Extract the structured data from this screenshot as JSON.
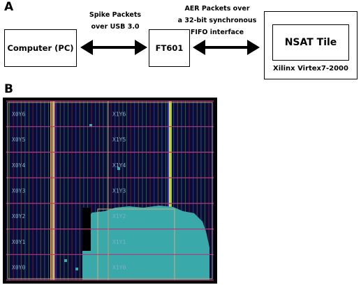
{
  "panel_a": {
    "label": "A",
    "host_box": "Computer (PC)",
    "bridge_box": "FT601",
    "tile_box": "NSAT Tile",
    "fpga_caption": "Xilinx Virtex7-2000",
    "usb_note": [
      "Spike Packets",
      "over USB 3.0"
    ],
    "fifo_note": [
      "AER Packets over",
      "a 32-bit synchronous",
      "FIFO interface"
    ]
  },
  "panel_b": {
    "label": "B",
    "region_labels_left": [
      "X0Y6",
      "X0Y5",
      "X0Y4",
      "X0Y3",
      "X0Y2",
      "X0Y1",
      "X0Y0"
    ],
    "region_labels_right": [
      "X1Y6",
      "X1Y5",
      "X1Y4",
      "X1Y3",
      "X1Y2",
      "X1Y1",
      "X1Y0"
    ]
  },
  "colors": {
    "floorplan_background": "#0b0b3a",
    "utilized_logic": "#39a9a9",
    "region_border": "#b7a27a",
    "region_row_line": "#b03a7a",
    "highlight_column": "#d8d82a"
  }
}
